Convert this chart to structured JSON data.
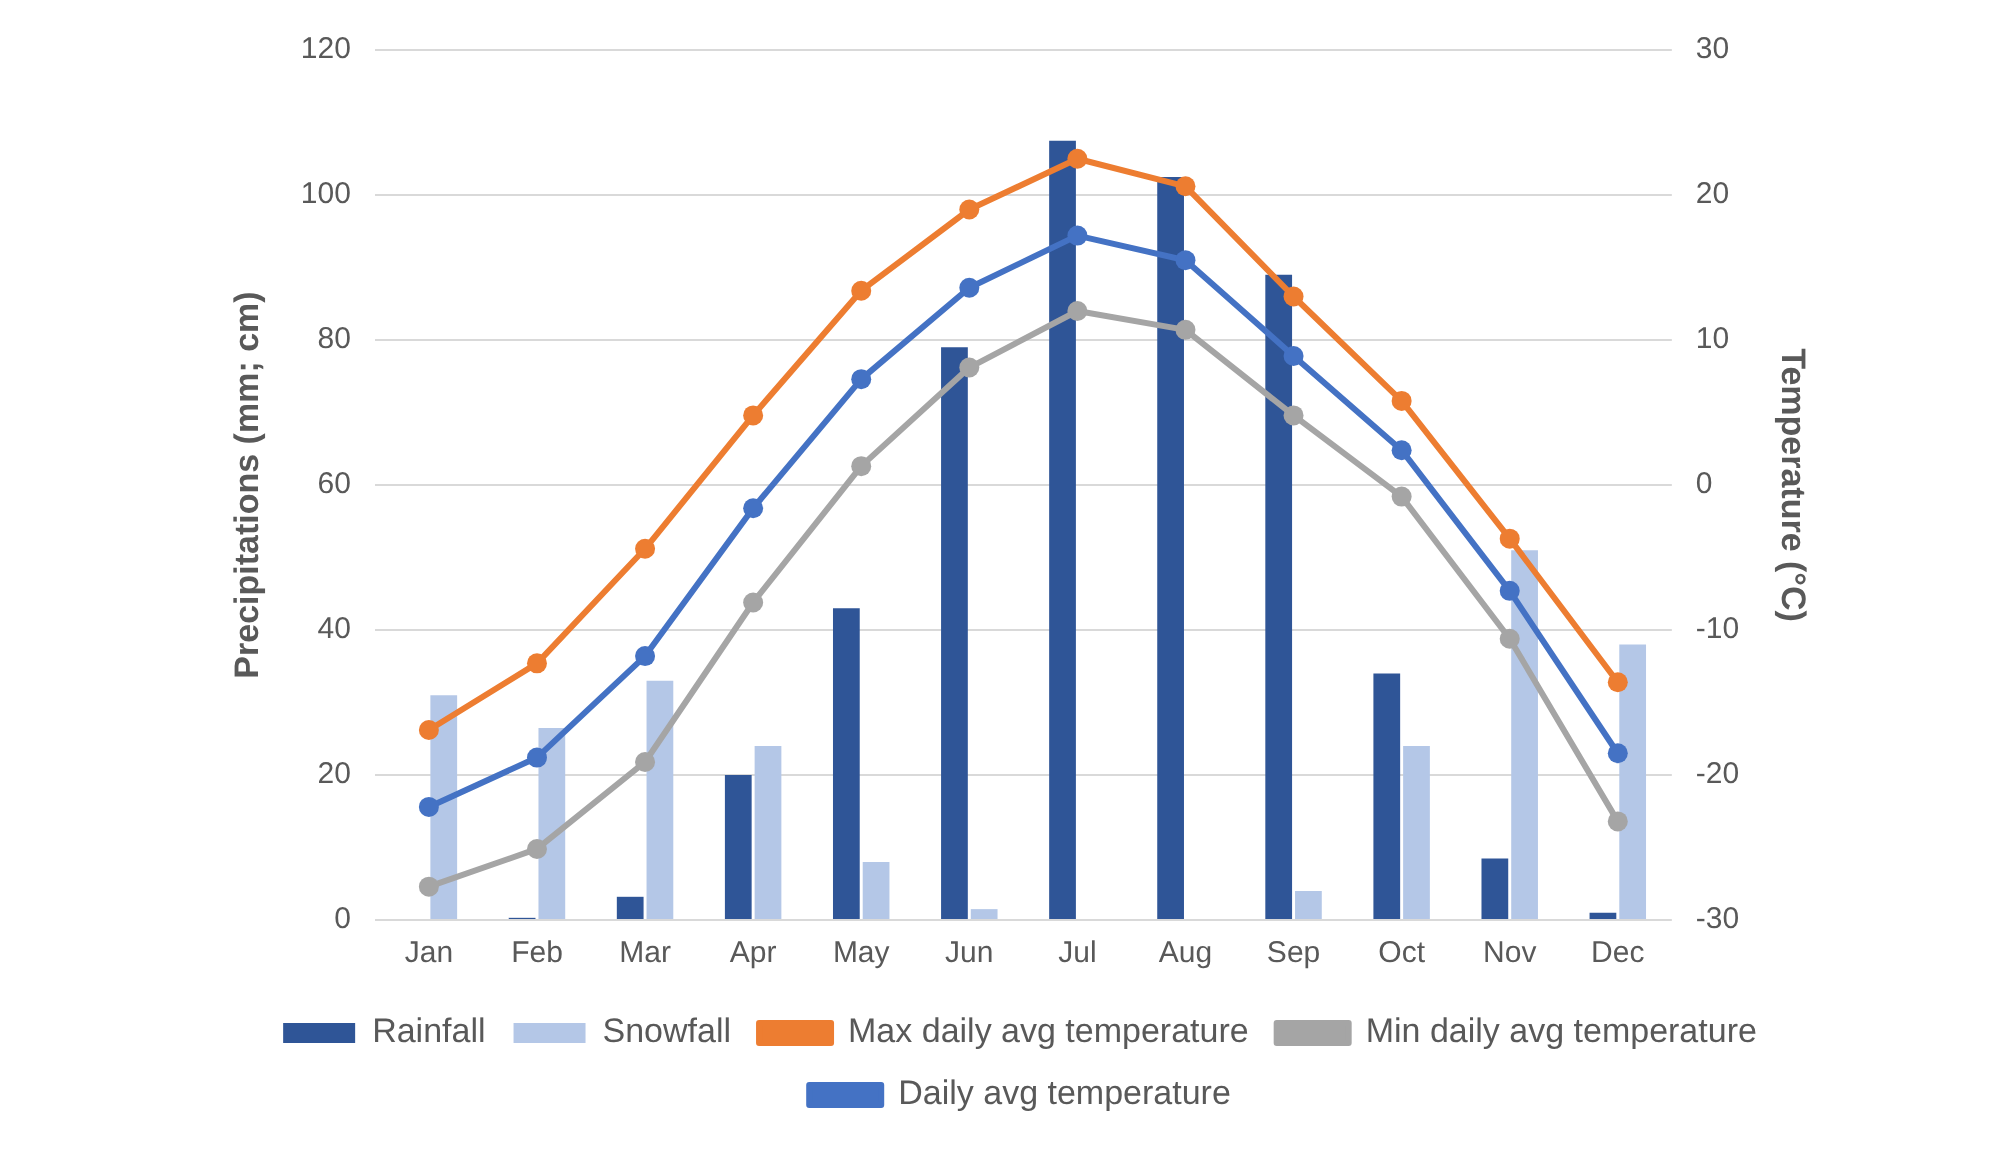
{
  "chart_data": {
    "type": "bar",
    "ylabel": "Precipitations (mm; cm)",
    "y2label": "Temperature (°C)",
    "categories": [
      "Jan",
      "Feb",
      "Mar",
      "Apr",
      "May",
      "Jun",
      "Jul",
      "Aug",
      "Sep",
      "Oct",
      "Nov",
      "Dec"
    ],
    "series": [
      {
        "name": "Rainfall",
        "color": "#2f5597",
        "values": [
          0,
          0.3,
          3.2,
          20,
          43,
          79,
          107.5,
          102.5,
          89,
          34,
          8.5,
          1
        ]
      },
      {
        "name": "Snowfall",
        "color": "#b4c7e7",
        "values": [
          31,
          26.5,
          33,
          24,
          8,
          1.5,
          0,
          0,
          4,
          24,
          51,
          38
        ]
      },
      {
        "name": "Max daily avg temperature",
        "type": "line",
        "axis": "y2",
        "color": "#ed7d31",
        "values": [
          -16.9,
          -12.3,
          -4.4,
          4.8,
          13.4,
          19,
          22.5,
          20.6,
          13,
          5.8,
          -3.7,
          -13.6
        ]
      },
      {
        "name": "Min daily avg temperature",
        "type": "line",
        "axis": "y2",
        "color": "#a5a5a5",
        "values": [
          -27.7,
          -25.1,
          -19.1,
          -8.1,
          1.3,
          8.1,
          12,
          10.7,
          4.8,
          -0.8,
          -10.6,
          -23.2
        ]
      },
      {
        "name": "Daily avg temperature",
        "type": "line",
        "axis": "y2",
        "color": "#4472c4",
        "values": [
          -22.2,
          -18.8,
          -11.8,
          -1.6,
          7.3,
          13.6,
          17.2,
          15.5,
          8.9,
          2.4,
          -7.3,
          -18.5
        ]
      }
    ],
    "ylim": [
      0,
      120
    ],
    "yticks": [
      0,
      20,
      40,
      60,
      80,
      100,
      120
    ],
    "y2lim": [
      -30,
      30
    ],
    "y2ticks": [
      -30,
      -20,
      -10,
      0,
      10,
      20,
      30
    ],
    "grid": "y",
    "legend": "bottom",
    "marker": "circle",
    "line_style": "solid"
  }
}
